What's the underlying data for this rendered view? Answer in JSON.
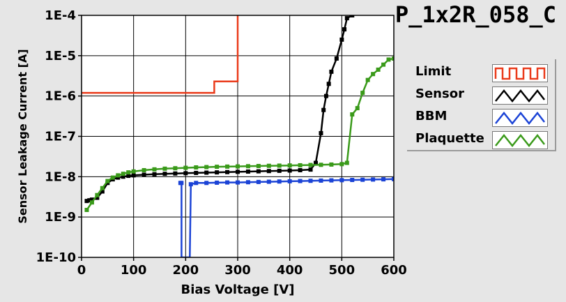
{
  "colors": {
    "limit": "#ea3a1a",
    "sensor": "#000000",
    "bbm": "#1b43d6",
    "plaquette": "#3a9a1a",
    "plot_bg": "#ffffff",
    "window_bg": "#e6e6e6"
  },
  "chart_data": {
    "type": "line",
    "title": "P_1x2R_058_C",
    "xlabel": "Bias Voltage [V]",
    "ylabel": "Sensor Leakage Current [A]",
    "xlim": [
      0,
      600
    ],
    "ylim": [
      1e-10,
      0.0001
    ],
    "y_scale": "log",
    "grid": true,
    "legend_position": "right",
    "x_ticks": [
      0,
      100,
      200,
      300,
      400,
      500,
      600
    ],
    "x_tick_labels": [
      "0",
      "100",
      "200",
      "300",
      "400",
      "500",
      "600"
    ],
    "y_ticks": [
      1e-10,
      1e-09,
      1e-08,
      1e-07,
      1e-06,
      1e-05,
      0.0001
    ],
    "y_tick_labels": [
      "1E-10",
      "1E-9",
      "1E-8",
      "1E-7",
      "1E-6",
      "1E-5",
      "1E-4"
    ],
    "series": [
      {
        "name": "Limit",
        "style": "step",
        "points": [
          [
            0,
            1.2e-06
          ],
          [
            10,
            1.2e-06
          ],
          [
            20,
            1.2e-06
          ],
          [
            30,
            1.2e-06
          ],
          [
            40,
            1.2e-06
          ],
          [
            50,
            1.2e-06
          ],
          [
            60,
            1.2e-06
          ],
          [
            70,
            1.2e-06
          ],
          [
            80,
            1.2e-06
          ],
          [
            90,
            1.2e-06
          ],
          [
            100,
            1.2e-06
          ],
          [
            110,
            1.2e-06
          ],
          [
            120,
            1.2e-06
          ],
          [
            130,
            1.2e-06
          ],
          [
            140,
            1.2e-06
          ],
          [
            150,
            1.2e-06
          ],
          [
            160,
            1.2e-06
          ],
          [
            170,
            1.2e-06
          ],
          [
            180,
            1.2e-06
          ],
          [
            190,
            1.2e-06
          ],
          [
            200,
            1.2e-06
          ],
          [
            210,
            1.2e-06
          ],
          [
            220,
            1.2e-06
          ],
          [
            230,
            1.2e-06
          ],
          [
            240,
            1.2e-06
          ],
          [
            250,
            1.2e-06
          ],
          [
            255,
            2.3e-06
          ],
          [
            260,
            2.3e-06
          ],
          [
            270,
            2.3e-06
          ],
          [
            280,
            2.3e-06
          ],
          [
            290,
            2.3e-06
          ],
          [
            300,
            2.3e-06
          ],
          [
            300,
            0.0001
          ]
        ]
      },
      {
        "name": "Sensor",
        "points": [
          [
            10,
            2.5e-09
          ],
          [
            15,
            2.6e-09
          ],
          [
            20,
            2.7e-09
          ],
          [
            30,
            3e-09
          ],
          [
            40,
            4.3e-09
          ],
          [
            50,
            7e-09
          ],
          [
            60,
            8.6e-09
          ],
          [
            70,
            9.5e-09
          ],
          [
            80,
            1e-08
          ],
          [
            90,
            1.05e-08
          ],
          [
            100,
            1.08e-08
          ],
          [
            120,
            1.12e-08
          ],
          [
            140,
            1.15e-08
          ],
          [
            160,
            1.18e-08
          ],
          [
            180,
            1.2e-08
          ],
          [
            200,
            1.22e-08
          ],
          [
            220,
            1.24e-08
          ],
          [
            240,
            1.26e-08
          ],
          [
            260,
            1.28e-08
          ],
          [
            280,
            1.3e-08
          ],
          [
            300,
            1.32e-08
          ],
          [
            320,
            1.34e-08
          ],
          [
            340,
            1.36e-08
          ],
          [
            360,
            1.38e-08
          ],
          [
            380,
            1.4e-08
          ],
          [
            400,
            1.42e-08
          ],
          [
            420,
            1.45e-08
          ],
          [
            440,
            1.5e-08
          ],
          [
            450,
            2.2e-08
          ],
          [
            460,
            1.2e-07
          ],
          [
            465,
            4.5e-07
          ],
          [
            470,
            1e-06
          ],
          [
            475,
            2e-06
          ],
          [
            480,
            4e-06
          ],
          [
            490,
            8.5e-06
          ],
          [
            500,
            2.5e-05
          ],
          [
            505,
            4.5e-05
          ],
          [
            510,
            8.5e-05
          ],
          [
            520,
            0.0001
          ]
        ]
      },
      {
        "name": "BBM",
        "points": [
          [
            190,
            7e-09
          ],
          [
            192,
            7e-09
          ],
          [
            192,
            1e-10
          ],
          [
            208,
            1e-10
          ],
          [
            210,
            6.5e-09
          ],
          [
            220,
            7e-09
          ],
          [
            240,
            7e-09
          ],
          [
            260,
            7.1e-09
          ],
          [
            280,
            7.2e-09
          ],
          [
            300,
            7.2e-09
          ],
          [
            320,
            7.3e-09
          ],
          [
            340,
            7.4e-09
          ],
          [
            360,
            7.5e-09
          ],
          [
            380,
            7.6e-09
          ],
          [
            400,
            7.7e-09
          ],
          [
            420,
            7.8e-09
          ],
          [
            440,
            7.9e-09
          ],
          [
            460,
            8e-09
          ],
          [
            480,
            8.1e-09
          ],
          [
            500,
            8.2e-09
          ],
          [
            520,
            8.3e-09
          ],
          [
            540,
            8.4e-09
          ],
          [
            560,
            8.5e-09
          ],
          [
            580,
            8.6e-09
          ],
          [
            600,
            8.7e-09
          ]
        ]
      },
      {
        "name": "Plaquette",
        "points": [
          [
            10,
            1.5e-09
          ],
          [
            20,
            2.3e-09
          ],
          [
            30,
            3.5e-09
          ],
          [
            40,
            5.2e-09
          ],
          [
            50,
            7.8e-09
          ],
          [
            60,
            9.5e-09
          ],
          [
            70,
            1.08e-08
          ],
          [
            80,
            1.18e-08
          ],
          [
            90,
            1.28e-08
          ],
          [
            100,
            1.35e-08
          ],
          [
            120,
            1.45e-08
          ],
          [
            140,
            1.52e-08
          ],
          [
            160,
            1.58e-08
          ],
          [
            180,
            1.62e-08
          ],
          [
            200,
            1.66e-08
          ],
          [
            220,
            1.7e-08
          ],
          [
            240,
            1.73e-08
          ],
          [
            260,
            1.76e-08
          ],
          [
            280,
            1.78e-08
          ],
          [
            300,
            1.8e-08
          ],
          [
            320,
            1.82e-08
          ],
          [
            340,
            1.84e-08
          ],
          [
            360,
            1.86e-08
          ],
          [
            380,
            1.88e-08
          ],
          [
            400,
            1.9e-08
          ],
          [
            420,
            1.92e-08
          ],
          [
            440,
            1.95e-08
          ],
          [
            460,
            1.97e-08
          ],
          [
            480,
            2e-08
          ],
          [
            500,
            2.05e-08
          ],
          [
            510,
            2.2e-08
          ],
          [
            520,
            3.5e-07
          ],
          [
            530,
            5e-07
          ],
          [
            540,
            1.2e-06
          ],
          [
            550,
            2.5e-06
          ],
          [
            560,
            3.5e-06
          ],
          [
            570,
            4.5e-06
          ],
          [
            580,
            6e-06
          ],
          [
            590,
            8e-06
          ],
          [
            600,
            8.5e-06
          ]
        ]
      }
    ]
  },
  "legend": {
    "items": [
      {
        "label": "Limit"
      },
      {
        "label": "Sensor"
      },
      {
        "label": "BBM"
      },
      {
        "label": "Plaquette"
      }
    ]
  }
}
